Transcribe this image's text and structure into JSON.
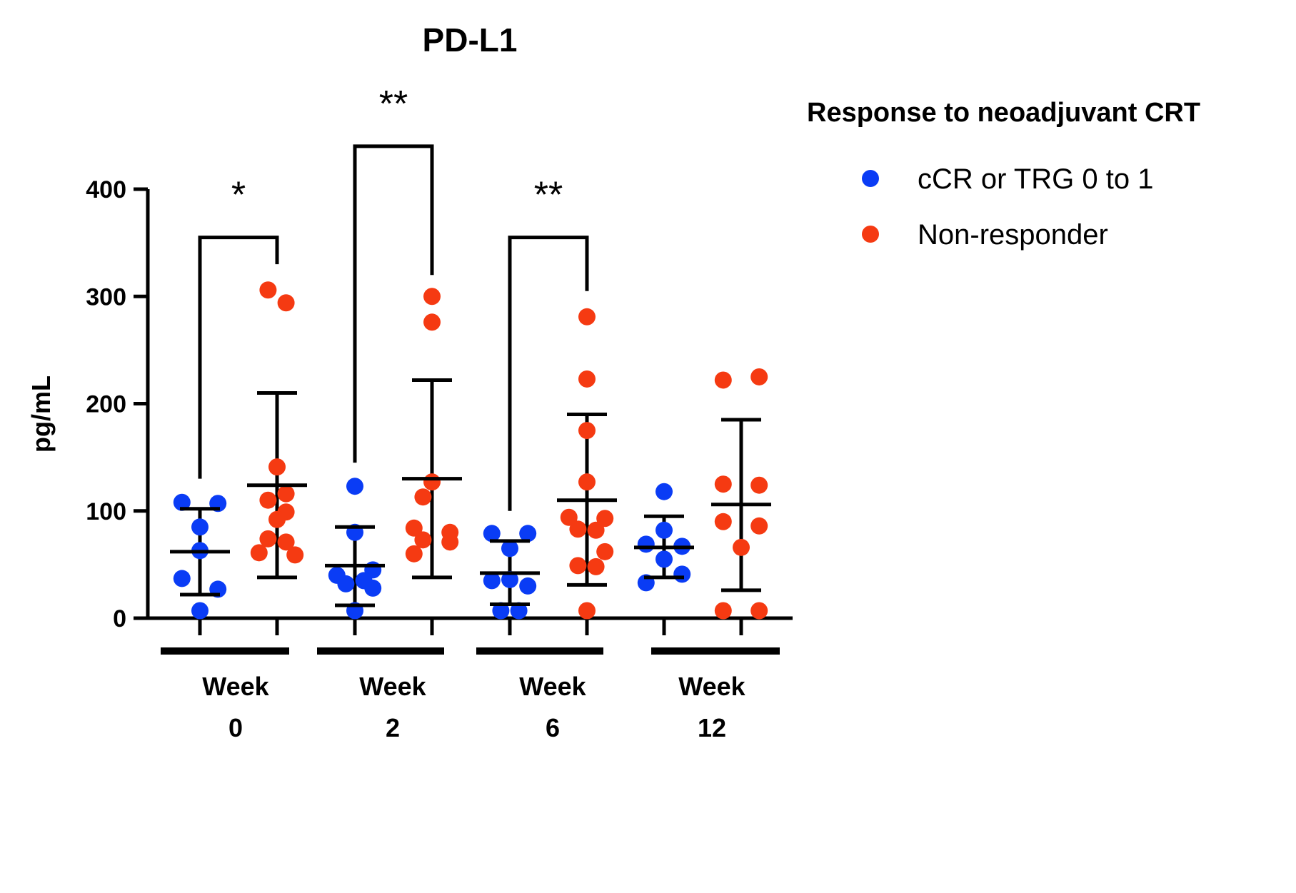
{
  "chart_data": {
    "type": "scatter",
    "title": "PD-L1",
    "ylabel": "pg/mL",
    "ylim": [
      0,
      400
    ],
    "yticks": [
      0,
      100,
      200,
      300,
      400
    ],
    "groups": [
      {
        "label_line1": "Week",
        "label_line2": "0"
      },
      {
        "label_line1": "Week",
        "label_line2": "2"
      },
      {
        "label_line1": "Week",
        "label_line2": "6"
      },
      {
        "label_line1": "Week",
        "label_line2": "12"
      }
    ],
    "legend_title": "Response to neoadjuvant CRT",
    "legend_position": "right",
    "series": [
      {
        "name": "cCR or TRG 0 to 1",
        "color": "#0a3cf5",
        "points": [
          [
            [
              -12,
              108
            ],
            [
              12,
              107
            ],
            [
              0,
              85
            ],
            [
              0,
              63
            ],
            [
              -12,
              37
            ],
            [
              12,
              27
            ],
            [
              0,
              7
            ]
          ],
          [
            [
              0,
              123
            ],
            [
              0,
              80
            ],
            [
              -12,
              40
            ],
            [
              12,
              45
            ],
            [
              -6,
              32
            ],
            [
              6,
              35
            ],
            [
              12,
              28
            ],
            [
              0,
              7
            ]
          ],
          [
            [
              -12,
              79
            ],
            [
              12,
              79
            ],
            [
              0,
              65
            ],
            [
              -12,
              35
            ],
            [
              0,
              36
            ],
            [
              12,
              30
            ],
            [
              -6,
              7
            ],
            [
              6,
              7
            ]
          ],
          [
            [
              0,
              118
            ],
            [
              0,
              82
            ],
            [
              -12,
              69
            ],
            [
              12,
              67
            ],
            [
              0,
              55
            ],
            [
              12,
              41
            ],
            [
              -12,
              33
            ]
          ]
        ],
        "mean": [
          62,
          49,
          42,
          66
        ],
        "sd_low": [
          22,
          12,
          13,
          38
        ],
        "sd_high": [
          102,
          85,
          72,
          95
        ]
      },
      {
        "name": "Non-responder",
        "color": "#f53a12",
        "points": [
          [
            [
              -6,
              306
            ],
            [
              6,
              294
            ],
            [
              0,
              141
            ],
            [
              -6,
              110
            ],
            [
              6,
              116
            ],
            [
              6,
              99
            ],
            [
              0,
              92
            ],
            [
              -6,
              74
            ],
            [
              6,
              71
            ],
            [
              -12,
              61
            ],
            [
              12,
              59
            ]
          ],
          [
            [
              0,
              300
            ],
            [
              0,
              276
            ],
            [
              0,
              127
            ],
            [
              -6,
              113
            ],
            [
              -12,
              84
            ],
            [
              12,
              80
            ],
            [
              -6,
              73
            ],
            [
              12,
              71
            ],
            [
              -12,
              60
            ]
          ],
          [
            [
              0,
              281
            ],
            [
              0,
              223
            ],
            [
              0,
              175
            ],
            [
              0,
              127
            ],
            [
              -12,
              94
            ],
            [
              12,
              93
            ],
            [
              -6,
              83
            ],
            [
              6,
              82
            ],
            [
              12,
              62
            ],
            [
              -6,
              49
            ],
            [
              6,
              48
            ],
            [
              0,
              7
            ]
          ],
          [
            [
              -12,
              222
            ],
            [
              12,
              225
            ],
            [
              -12,
              125
            ],
            [
              12,
              124
            ],
            [
              -12,
              90
            ],
            [
              12,
              86
            ],
            [
              0,
              66
            ],
            [
              -12,
              7
            ],
            [
              12,
              7
            ]
          ]
        ],
        "mean": [
          124,
          130,
          110,
          106
        ],
        "sd_low": [
          38,
          38,
          31,
          26
        ],
        "sd_high": [
          210,
          222,
          190,
          185
        ]
      }
    ],
    "significance": [
      {
        "group": 0,
        "label": "*",
        "left_y": 130,
        "right_y": 330,
        "bar_y": 355
      },
      {
        "group": 1,
        "label": "**",
        "left_y": 145,
        "right_y": 320,
        "bar_y": 440
      },
      {
        "group": 2,
        "label": "**",
        "left_y": 100,
        "right_y": 305,
        "bar_y": 355
      }
    ]
  }
}
